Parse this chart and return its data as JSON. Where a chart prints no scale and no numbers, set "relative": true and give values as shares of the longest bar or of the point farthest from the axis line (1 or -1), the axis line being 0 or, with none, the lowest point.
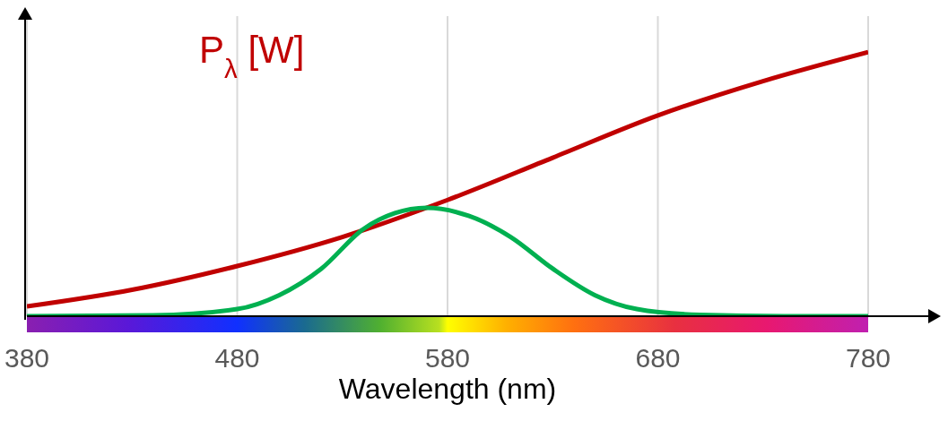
{
  "chart_data": {
    "type": "line",
    "relative": true,
    "xlabel": "Wavelength (nm)",
    "xlim": [
      380,
      780
    ],
    "xticks": [
      380,
      480,
      580,
      680,
      780
    ],
    "grid": "x",
    "legend": false,
    "marker": "none",
    "line_style": "solid",
    "series": [
      {
        "name": "P$_{λ}$ [W]",
        "color": "#c00000",
        "x": [
          380,
          430,
          480,
          530,
          580,
          630,
          680,
          730,
          780
        ],
        "values": [
          0.037,
          0.1,
          0.19,
          0.3,
          0.44,
          0.6,
          0.76,
          0.89,
          1
        ]
      },
      {
        "color": "#00b050",
        "x": [
          380,
          440,
          480,
          500,
          520,
          540,
          555,
          570,
          590,
          610,
          630,
          650,
          670,
          700,
          740,
          780
        ],
        "values": [
          0,
          0.003,
          0.027,
          0.08,
          0.18,
          0.33,
          0.39,
          0.41,
          0.38,
          0.3,
          0.18,
          0.08,
          0.027,
          0.005,
          0,
          0
        ]
      }
    ]
  }
}
